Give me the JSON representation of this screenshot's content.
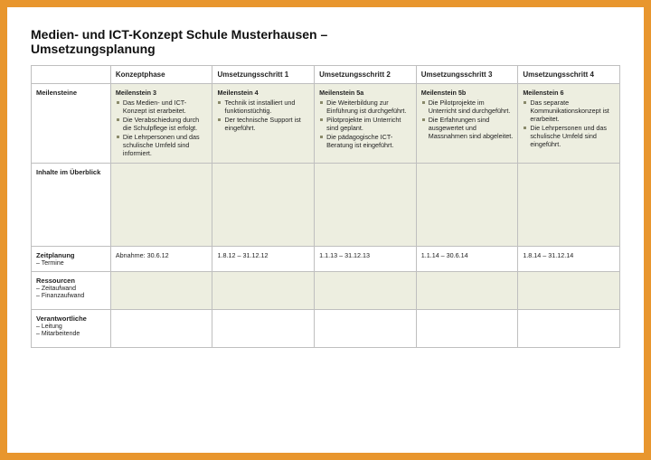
{
  "title_line1": "Medien- und ICT-Konzept Schule Musterhausen –",
  "title_line2": "Umsetzungsplanung",
  "columns": {
    "c0": "",
    "c1": "Konzeptphase",
    "c2": "Umsetzungsschritt 1",
    "c3": "Umsetzungsschritt 2",
    "c4": "Umsetzungsschritt 3",
    "c5": "Umsetzungsschritt 4"
  },
  "rows": {
    "meilensteine": {
      "label": "Meilensteine",
      "c1": {
        "title": "Meilenstein 3",
        "items": [
          "Das Medien- und ICT-Konzept ist erarbeitet.",
          "Die Verabschiedung durch die Schulpflege ist erfolgt.",
          "Die Lehrpersonen und das schulische Umfeld sind informiert."
        ]
      },
      "c2": {
        "title": "Meilenstein 4",
        "items": [
          "Technik ist installiert und funktionstüchtig.",
          "Der technische Support ist eingeführt."
        ]
      },
      "c3": {
        "title": "Meilenstein 5a",
        "items": [
          "Die Weiterbildung zur Einführung ist durchgeführt.",
          "Pilotprojekte im Unterricht sind geplant.",
          "Die pädagogische ICT-Beratung ist eingeführt."
        ]
      },
      "c4": {
        "title": "Meilenstein 5b",
        "items": [
          "Die Pilotprojekte im Unterricht sind durchgeführt.",
          "Die Erfahrungen sind ausgewertet und Massnahmen sind abgeleitet."
        ]
      },
      "c5": {
        "title": "Meilenstein 6",
        "items": [
          "Das separate Kommunikationskonzept ist erarbeitet.",
          "Die Lehrpersonen und das schulische Umfeld sind eingeführt."
        ]
      }
    },
    "inhalte": {
      "label": "Inhalte im Überblick"
    },
    "zeitplanung": {
      "label": "Zeitplanung",
      "sublabel": "– Termine",
      "c1": "Abnahme: 30.6.12",
      "c2": "1.8.12 – 31.12.12",
      "c3": "1.1.13 – 31.12.13",
      "c4": "1.1.14 – 30.6.14",
      "c5": "1.8.14 – 31.12.14"
    },
    "ressourcen": {
      "label": "Ressourcen",
      "sublabel1": "– Zeitaufwand",
      "sublabel2": "– Finanzaufwand"
    },
    "verantwortliche": {
      "label": "Verantwortliche",
      "sublabel1": "– Leitung",
      "sublabel2": "– Mitarbeitende"
    }
  },
  "colors": {
    "page_border": "#e8962e",
    "page_bg": "#ffffff",
    "alt_cell_bg": "#edeee0",
    "grid": "#bfbfbf",
    "bullet": "#8a8a6a"
  }
}
